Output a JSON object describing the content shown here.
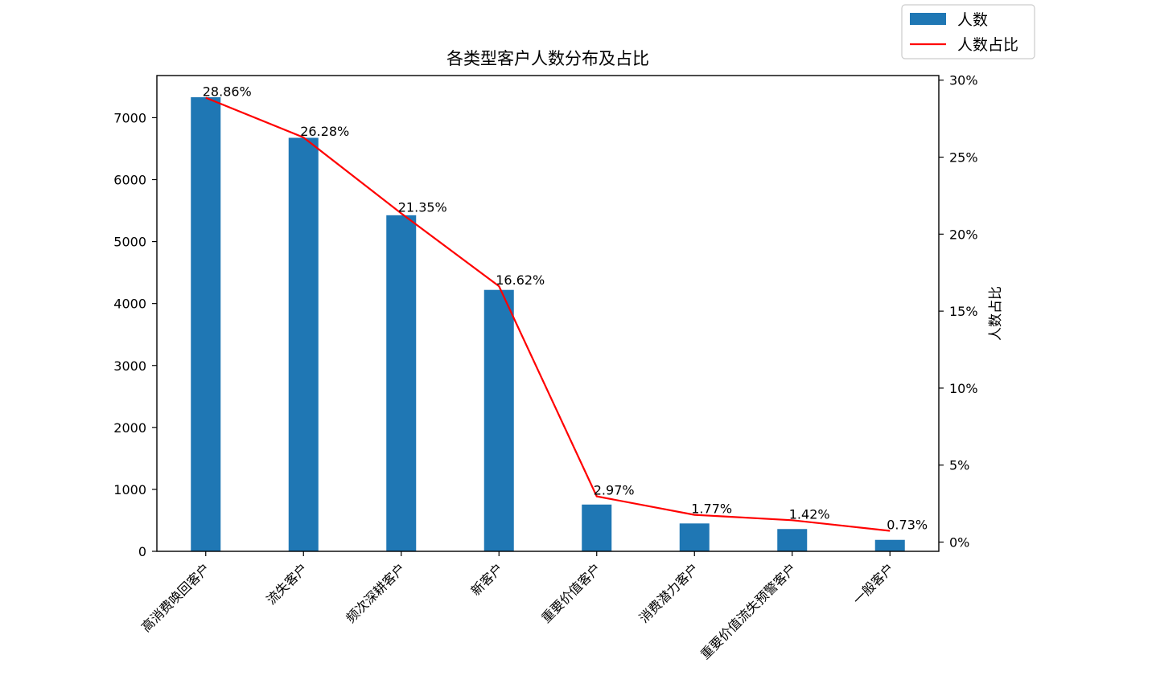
{
  "chart_data": {
    "type": "bar",
    "title": "各类型客户人数分布及占比",
    "categories": [
      "高消费唤回客户",
      "流失客户",
      "频次深耕客户",
      "新客户",
      "重要价值客户",
      "消费潜力客户",
      "重要价值流失预警客户",
      "一般客户"
    ],
    "series": [
      {
        "name": "人数",
        "type": "bar",
        "axis": "left",
        "color": "#1f77b4",
        "values": [
          7330,
          6675,
          5425,
          4220,
          755,
          450,
          360,
          185
        ]
      },
      {
        "name": "人数占比",
        "type": "line",
        "axis": "right",
        "color": "#ff0000",
        "values": [
          28.86,
          26.28,
          21.35,
          16.62,
          2.97,
          1.77,
          1.42,
          0.73
        ]
      }
    ],
    "data_labels": [
      "28.86%",
      "26.28%",
      "21.35%",
      "16.62%",
      "2.97%",
      "1.77%",
      "1.42%",
      "0.73%"
    ],
    "ylabel_left": "",
    "ylabel_right": "人数占比",
    "ylim_left": [
      0,
      7680
    ],
    "yticks_left": [
      0,
      1000,
      2000,
      3000,
      4000,
      5000,
      6000,
      7000
    ],
    "ylim_right": [
      -0.6,
      30.3
    ],
    "yticks_right": [
      0,
      5,
      10,
      15,
      20,
      25,
      30
    ],
    "yticks_right_labels": [
      "0%",
      "5%",
      "10%",
      "15%",
      "20%",
      "25%",
      "30%"
    ],
    "grid": false,
    "legend": "top-right"
  }
}
